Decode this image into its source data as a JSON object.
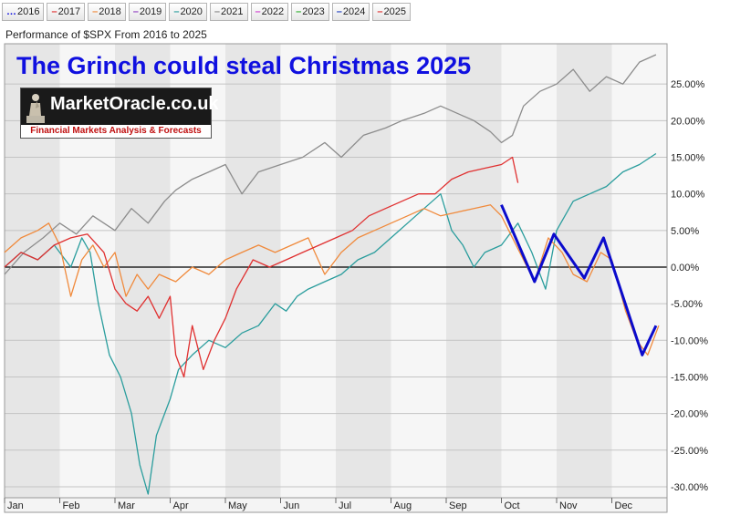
{
  "legend": [
    {
      "label": "2016",
      "color": "#1010e0",
      "style": "dotted"
    },
    {
      "label": "2017",
      "color": "#e03030",
      "style": "dashed"
    },
    {
      "label": "2018",
      "color": "#f08a3c",
      "style": "dashed"
    },
    {
      "label": "2019",
      "color": "#9040c0",
      "style": "dashed"
    },
    {
      "label": "2020",
      "color": "#2a9d9d",
      "style": "dashed"
    },
    {
      "label": "2021",
      "color": "#888888",
      "style": "dashed"
    },
    {
      "label": "2022",
      "color": "#d040d0",
      "style": "dashed"
    },
    {
      "label": "2023",
      "color": "#30b030",
      "style": "dashed"
    },
    {
      "label": "2024",
      "color": "#2040c0",
      "style": "dashed"
    },
    {
      "label": "2025",
      "color": "#e03030",
      "style": "dashed"
    }
  ],
  "subtitle": "Performance of $SPX From 2016 to 2025",
  "headline": "The Grinch could steal Christmas 2025",
  "logo": {
    "name": "MarketOracle.co.uk",
    "tagline": "Financial Markets Analysis & Forecasts"
  },
  "chart_data": {
    "type": "line",
    "x_ticks": [
      "Jan",
      "Feb",
      "Mar",
      "Apr",
      "May",
      "Jun",
      "Jul",
      "Aug",
      "Sep",
      "Oct",
      "Nov",
      "Dec"
    ],
    "y_ticks": [
      "25.00%",
      "20.00%",
      "15.00%",
      "10.00%",
      "5.00%",
      "0.00%",
      "-5.00%",
      "-10.00%",
      "-15.00%",
      "-20.00%",
      "-25.00%",
      "-30.00%"
    ],
    "y_tick_values": [
      25,
      20,
      15,
      10,
      5,
      0,
      -5,
      -10,
      -15,
      -20,
      -25,
      -30
    ],
    "x_unit": "month_of_year",
    "ylim": [
      -31.5,
      30.5
    ],
    "xlim": [
      0,
      12
    ],
    "zero_line": true,
    "grid": true,
    "series": [
      {
        "name": "2021",
        "color": "#8c8c8c",
        "points": [
          [
            0,
            -1
          ],
          [
            0.35,
            2
          ],
          [
            0.7,
            4
          ],
          [
            1.0,
            6
          ],
          [
            1.3,
            4.5
          ],
          [
            1.6,
            7
          ],
          [
            2.0,
            5
          ],
          [
            2.3,
            8
          ],
          [
            2.6,
            6
          ],
          [
            2.9,
            9
          ],
          [
            3.1,
            10.5
          ],
          [
            3.4,
            12
          ],
          [
            3.7,
            13
          ],
          [
            4.0,
            14
          ],
          [
            4.3,
            10
          ],
          [
            4.6,
            13
          ],
          [
            5.0,
            14
          ],
          [
            5.4,
            15
          ],
          [
            5.8,
            17
          ],
          [
            6.1,
            15
          ],
          [
            6.5,
            18
          ],
          [
            6.9,
            19
          ],
          [
            7.2,
            20
          ],
          [
            7.6,
            21
          ],
          [
            7.9,
            22
          ],
          [
            8.2,
            21
          ],
          [
            8.5,
            20
          ],
          [
            8.8,
            18.5
          ],
          [
            9.0,
            17
          ],
          [
            9.2,
            18
          ],
          [
            9.4,
            22
          ],
          [
            9.7,
            24
          ],
          [
            10.0,
            25
          ],
          [
            10.3,
            27
          ],
          [
            10.6,
            24
          ],
          [
            10.9,
            26
          ],
          [
            11.2,
            25
          ],
          [
            11.5,
            28
          ],
          [
            11.8,
            29
          ]
        ]
      },
      {
        "name": "2020",
        "color": "#2a9d9d",
        "points": [
          [
            0,
            0
          ],
          [
            0.3,
            2
          ],
          [
            0.6,
            1
          ],
          [
            0.9,
            3
          ],
          [
            1.2,
            0
          ],
          [
            1.4,
            4
          ],
          [
            1.55,
            2
          ],
          [
            1.7,
            -5
          ],
          [
            1.9,
            -12
          ],
          [
            2.1,
            -15
          ],
          [
            2.3,
            -20
          ],
          [
            2.45,
            -27
          ],
          [
            2.6,
            -31
          ],
          [
            2.75,
            -23
          ],
          [
            3.0,
            -18
          ],
          [
            3.15,
            -14
          ],
          [
            3.4,
            -12
          ],
          [
            3.7,
            -10
          ],
          [
            4.0,
            -11
          ],
          [
            4.3,
            -9
          ],
          [
            4.6,
            -8
          ],
          [
            4.9,
            -5
          ],
          [
            5.1,
            -6
          ],
          [
            5.3,
            -4
          ],
          [
            5.5,
            -3
          ],
          [
            5.8,
            -2
          ],
          [
            6.1,
            -1
          ],
          [
            6.4,
            1
          ],
          [
            6.7,
            2
          ],
          [
            7.0,
            4
          ],
          [
            7.3,
            6
          ],
          [
            7.6,
            8
          ],
          [
            7.9,
            10
          ],
          [
            8.1,
            5
          ],
          [
            8.3,
            3
          ],
          [
            8.5,
            0
          ],
          [
            8.7,
            2
          ],
          [
            9.0,
            3
          ],
          [
            9.3,
            6
          ],
          [
            9.55,
            2
          ],
          [
            9.8,
            -3
          ],
          [
            10.0,
            5
          ],
          [
            10.3,
            9
          ],
          [
            10.6,
            10
          ],
          [
            10.9,
            11
          ],
          [
            11.2,
            13
          ],
          [
            11.5,
            14
          ],
          [
            11.8,
            15.5
          ]
        ]
      },
      {
        "name": "2018",
        "color": "#f08a3c",
        "points": [
          [
            0,
            2
          ],
          [
            0.3,
            4
          ],
          [
            0.6,
            5
          ],
          [
            0.8,
            6
          ],
          [
            1.0,
            3
          ],
          [
            1.2,
            -4
          ],
          [
            1.4,
            1
          ],
          [
            1.6,
            3
          ],
          [
            1.8,
            0
          ],
          [
            2.0,
            2
          ],
          [
            2.2,
            -4
          ],
          [
            2.4,
            -1
          ],
          [
            2.6,
            -3
          ],
          [
            2.8,
            -1
          ],
          [
            3.1,
            -2
          ],
          [
            3.4,
            0
          ],
          [
            3.7,
            -1
          ],
          [
            4.0,
            1
          ],
          [
            4.3,
            2
          ],
          [
            4.6,
            3
          ],
          [
            4.9,
            2
          ],
          [
            5.2,
            3
          ],
          [
            5.5,
            4
          ],
          [
            5.8,
            -1
          ],
          [
            6.1,
            2
          ],
          [
            6.4,
            4
          ],
          [
            6.7,
            5
          ],
          [
            7.0,
            6
          ],
          [
            7.3,
            7
          ],
          [
            7.6,
            8
          ],
          [
            7.9,
            7
          ],
          [
            8.2,
            7.5
          ],
          [
            8.5,
            8
          ],
          [
            8.8,
            8.5
          ],
          [
            9.0,
            7
          ],
          [
            9.2,
            4
          ],
          [
            9.4,
            1
          ],
          [
            9.6,
            -2
          ],
          [
            9.85,
            4
          ],
          [
            10.1,
            2
          ],
          [
            10.3,
            -1
          ],
          [
            10.55,
            -2
          ],
          [
            10.8,
            2
          ],
          [
            11.0,
            1
          ],
          [
            11.25,
            -6
          ],
          [
            11.45,
            -10
          ],
          [
            11.65,
            -12
          ],
          [
            11.85,
            -8
          ]
        ]
      },
      {
        "name": "2025",
        "color": "#e03030",
        "points": [
          [
            0,
            0
          ],
          [
            0.3,
            2
          ],
          [
            0.6,
            1
          ],
          [
            0.9,
            3
          ],
          [
            1.2,
            4
          ],
          [
            1.5,
            4.5
          ],
          [
            1.8,
            2
          ],
          [
            2.0,
            -3
          ],
          [
            2.2,
            -5
          ],
          [
            2.4,
            -6
          ],
          [
            2.6,
            -4
          ],
          [
            2.8,
            -7
          ],
          [
            3.0,
            -4
          ],
          [
            3.1,
            -12
          ],
          [
            3.25,
            -15
          ],
          [
            3.4,
            -8
          ],
          [
            3.6,
            -14
          ],
          [
            3.8,
            -10
          ],
          [
            4.0,
            -7
          ],
          [
            4.2,
            -3
          ],
          [
            4.5,
            1
          ],
          [
            4.8,
            0
          ],
          [
            5.1,
            1
          ],
          [
            5.4,
            2
          ],
          [
            5.7,
            3
          ],
          [
            6.0,
            4
          ],
          [
            6.3,
            5
          ],
          [
            6.6,
            7
          ],
          [
            6.9,
            8
          ],
          [
            7.2,
            9
          ],
          [
            7.5,
            10
          ],
          [
            7.8,
            10
          ],
          [
            8.1,
            12
          ],
          [
            8.4,
            13
          ],
          [
            8.7,
            13.5
          ],
          [
            9.0,
            14
          ],
          [
            9.2,
            15
          ],
          [
            9.3,
            11.5
          ]
        ]
      },
      {
        "name": "",
        "color": "#0b0bcc",
        "width": 3,
        "points": [
          [
            9.0,
            8.5
          ],
          [
            9.6,
            -2
          ],
          [
            9.95,
            4.5
          ],
          [
            10.5,
            -1.5
          ],
          [
            10.85,
            4
          ],
          [
            11.55,
            -12
          ],
          [
            11.8,
            -8
          ]
        ]
      }
    ]
  }
}
